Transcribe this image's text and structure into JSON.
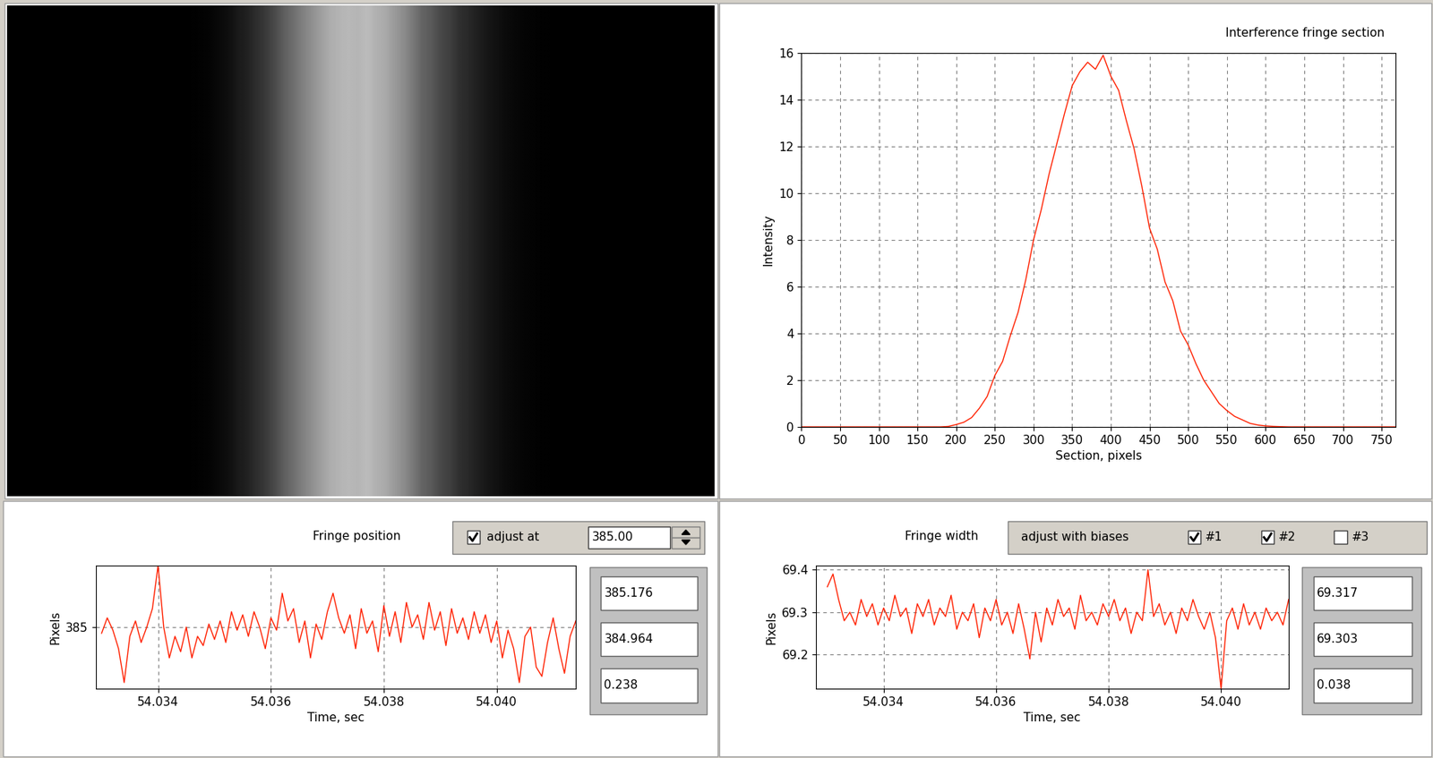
{
  "chart_data": [
    {
      "type": "line",
      "title": "Interference fringe section",
      "x_label": "Section, pixels",
      "y_label": "Intensity",
      "x": [
        0,
        170,
        180,
        190,
        200,
        210,
        220,
        230,
        240,
        250,
        260,
        270,
        280,
        290,
        300,
        310,
        320,
        330,
        340,
        350,
        360,
        370,
        380,
        390,
        400,
        410,
        420,
        430,
        440,
        450,
        460,
        470,
        480,
        490,
        500,
        510,
        520,
        530,
        540,
        550,
        560,
        570,
        580,
        590,
        600,
        610,
        620,
        630,
        640,
        650,
        660,
        768
      ],
      "values": [
        0,
        0,
        0,
        0.02,
        0.1,
        0.2,
        0.4,
        0.8,
        1.3,
        2.2,
        2.8,
        3.9,
        4.9,
        6.3,
        8.0,
        9.3,
        10.8,
        12.1,
        13.4,
        14.6,
        15.2,
        15.6,
        15.3,
        15.9,
        15.0,
        14.4,
        13.1,
        11.9,
        10.3,
        8.5,
        7.6,
        6.2,
        5.4,
        4.1,
        3.5,
        2.7,
        2.0,
        1.5,
        1.0,
        0.7,
        0.45,
        0.3,
        0.15,
        0.08,
        0.04,
        0.02,
        0.01,
        0,
        0,
        0,
        0,
        0
      ],
      "color": "#ff2000",
      "xlim": [
        0,
        768
      ],
      "xticks": [
        0,
        50,
        100,
        150,
        200,
        250,
        300,
        350,
        400,
        450,
        500,
        550,
        600,
        650,
        700,
        750
      ],
      "ylim": [
        0,
        16
      ],
      "yticks": [
        0,
        2,
        4,
        6,
        8,
        10,
        12,
        14,
        16
      ],
      "grid": true
    },
    {
      "type": "line",
      "title": "Fringe position",
      "x_label": "Time, sec",
      "y_label": "Pixels",
      "x": [
        54.033,
        54.0331,
        54.0332,
        54.0333,
        54.0334,
        54.0335,
        54.0336,
        54.0337,
        54.0338,
        54.0339,
        54.034,
        54.0341,
        54.0342,
        54.0343,
        54.0344,
        54.0345,
        54.0346,
        54.0347,
        54.0348,
        54.0349,
        54.035,
        54.0351,
        54.0352,
        54.0353,
        54.0354,
        54.0355,
        54.0356,
        54.0357,
        54.0358,
        54.0359,
        54.036,
        54.0361,
        54.0362,
        54.0363,
        54.0364,
        54.0365,
        54.0366,
        54.0367,
        54.0368,
        54.0369,
        54.037,
        54.0371,
        54.0372,
        54.0373,
        54.0374,
        54.0375,
        54.0376,
        54.0377,
        54.0378,
        54.0379,
        54.038,
        54.0381,
        54.0382,
        54.0383,
        54.0384,
        54.0385,
        54.0386,
        54.0387,
        54.0388,
        54.0389,
        54.039,
        54.0391,
        54.0392,
        54.0393,
        54.0394,
        54.0395,
        54.0396,
        54.0397,
        54.0398,
        54.0399,
        54.04,
        54.0401,
        54.0402,
        54.0403,
        54.0404,
        54.0405,
        54.0406,
        54.0407,
        54.0408,
        54.0409,
        54.041,
        54.0411,
        54.0412,
        54.0413,
        54.0414
      ],
      "values": [
        384.98,
        385.03,
        384.99,
        384.93,
        384.82,
        384.97,
        385.02,
        384.95,
        385.0,
        385.06,
        385.2,
        385.0,
        384.9,
        384.97,
        384.92,
        385.0,
        384.9,
        384.97,
        384.94,
        385.01,
        384.96,
        385.02,
        384.95,
        385.05,
        384.99,
        385.04,
        384.97,
        385.05,
        385.0,
        384.93,
        385.03,
        384.99,
        385.11,
        385.02,
        385.06,
        384.95,
        385.02,
        384.9,
        385.01,
        384.96,
        385.05,
        385.11,
        385.03,
        384.98,
        385.04,
        384.93,
        385.06,
        384.98,
        385.02,
        384.92,
        385.07,
        384.97,
        385.05,
        384.95,
        385.08,
        385.0,
        385.04,
        384.96,
        385.08,
        384.99,
        385.05,
        384.94,
        385.06,
        384.98,
        385.03,
        384.96,
        385.05,
        384.98,
        385.04,
        384.95,
        385.02,
        384.9,
        384.99,
        384.93,
        384.82,
        384.97,
        385.0,
        384.87,
        384.84,
        384.95,
        385.03,
        384.93,
        384.85,
        384.97,
        385.02
      ],
      "color": "#ff2000",
      "xlim": [
        54.0329,
        54.0414
      ],
      "xticks": [
        54.034,
        54.036,
        54.038,
        {
          "value": 54.04,
          "label": "54.040"
        }
      ],
      "ylim": [
        384.8,
        385.2
      ],
      "yticks": [
        385
      ],
      "grid": true
    },
    {
      "type": "line",
      "title": "Fringe width",
      "x_label": "Time, sec",
      "y_label": "Pixels",
      "x": [
        54.033,
        54.0331,
        54.0332,
        54.0333,
        54.0334,
        54.0335,
        54.0336,
        54.0337,
        54.0338,
        54.0339,
        54.034,
        54.0341,
        54.0342,
        54.0343,
        54.0344,
        54.0345,
        54.0346,
        54.0347,
        54.0348,
        54.0349,
        54.035,
        54.0351,
        54.0352,
        54.0353,
        54.0354,
        54.0355,
        54.0356,
        54.0357,
        54.0358,
        54.0359,
        54.036,
        54.0361,
        54.0362,
        54.0363,
        54.0364,
        54.0365,
        54.0366,
        54.0367,
        54.0368,
        54.0369,
        54.037,
        54.0371,
        54.0372,
        54.0373,
        54.0374,
        54.0375,
        54.0376,
        54.0377,
        54.0378,
        54.0379,
        54.038,
        54.0381,
        54.0382,
        54.0383,
        54.0384,
        54.0385,
        54.0386,
        54.0387,
        54.0388,
        54.0389,
        54.039,
        54.0391,
        54.0392,
        54.0393,
        54.0394,
        54.0395,
        54.0396,
        54.0397,
        54.0398,
        54.0399,
        54.04,
        54.0401,
        54.0402,
        54.0403,
        54.0404,
        54.0405,
        54.0406,
        54.0407,
        54.0408,
        54.0409,
        54.041,
        54.0411,
        54.0412
      ],
      "values": [
        69.36,
        69.39,
        69.33,
        69.28,
        69.3,
        69.27,
        69.33,
        69.29,
        69.32,
        69.27,
        69.31,
        69.28,
        69.34,
        69.29,
        69.31,
        69.25,
        69.32,
        69.29,
        69.33,
        69.27,
        69.31,
        69.29,
        69.34,
        69.26,
        69.3,
        69.28,
        69.32,
        69.24,
        69.31,
        69.28,
        69.33,
        69.27,
        69.3,
        69.25,
        69.32,
        69.26,
        69.19,
        69.3,
        69.23,
        69.31,
        69.27,
        69.33,
        69.29,
        69.31,
        69.26,
        69.34,
        69.28,
        69.3,
        69.27,
        69.32,
        69.29,
        69.33,
        69.28,
        69.31,
        69.25,
        69.3,
        69.28,
        69.4,
        69.29,
        69.32,
        69.27,
        69.3,
        69.25,
        69.31,
        69.28,
        69.33,
        69.29,
        69.26,
        69.3,
        69.24,
        69.12,
        69.28,
        69.31,
        69.26,
        69.32,
        69.27,
        69.3,
        69.26,
        69.31,
        69.28,
        69.3,
        69.27,
        69.33
      ],
      "color": "#ff2000",
      "xlim": [
        54.0328,
        54.0412
      ],
      "xticks": [
        54.034,
        54.036,
        54.038,
        {
          "value": 54.04,
          "label": "54.040"
        }
      ],
      "ylim": [
        69.12,
        69.41
      ],
      "yticks": [
        69.2,
        69.3,
        69.4
      ],
      "grid": true
    }
  ],
  "controls": {
    "position": {
      "checkbox": {
        "label": "adjust at",
        "checked": true
      },
      "spin_value": "385.00",
      "readouts": [
        "385.176",
        "384.964",
        "0.238"
      ]
    },
    "width": {
      "label": "adjust with biases",
      "checkboxes": [
        {
          "label": "#1",
          "checked": true
        },
        {
          "label": "#2",
          "checked": true
        },
        {
          "label": "#3",
          "checked": false
        }
      ],
      "readouts": [
        "69.317",
        "69.303",
        "0.038"
      ]
    }
  }
}
